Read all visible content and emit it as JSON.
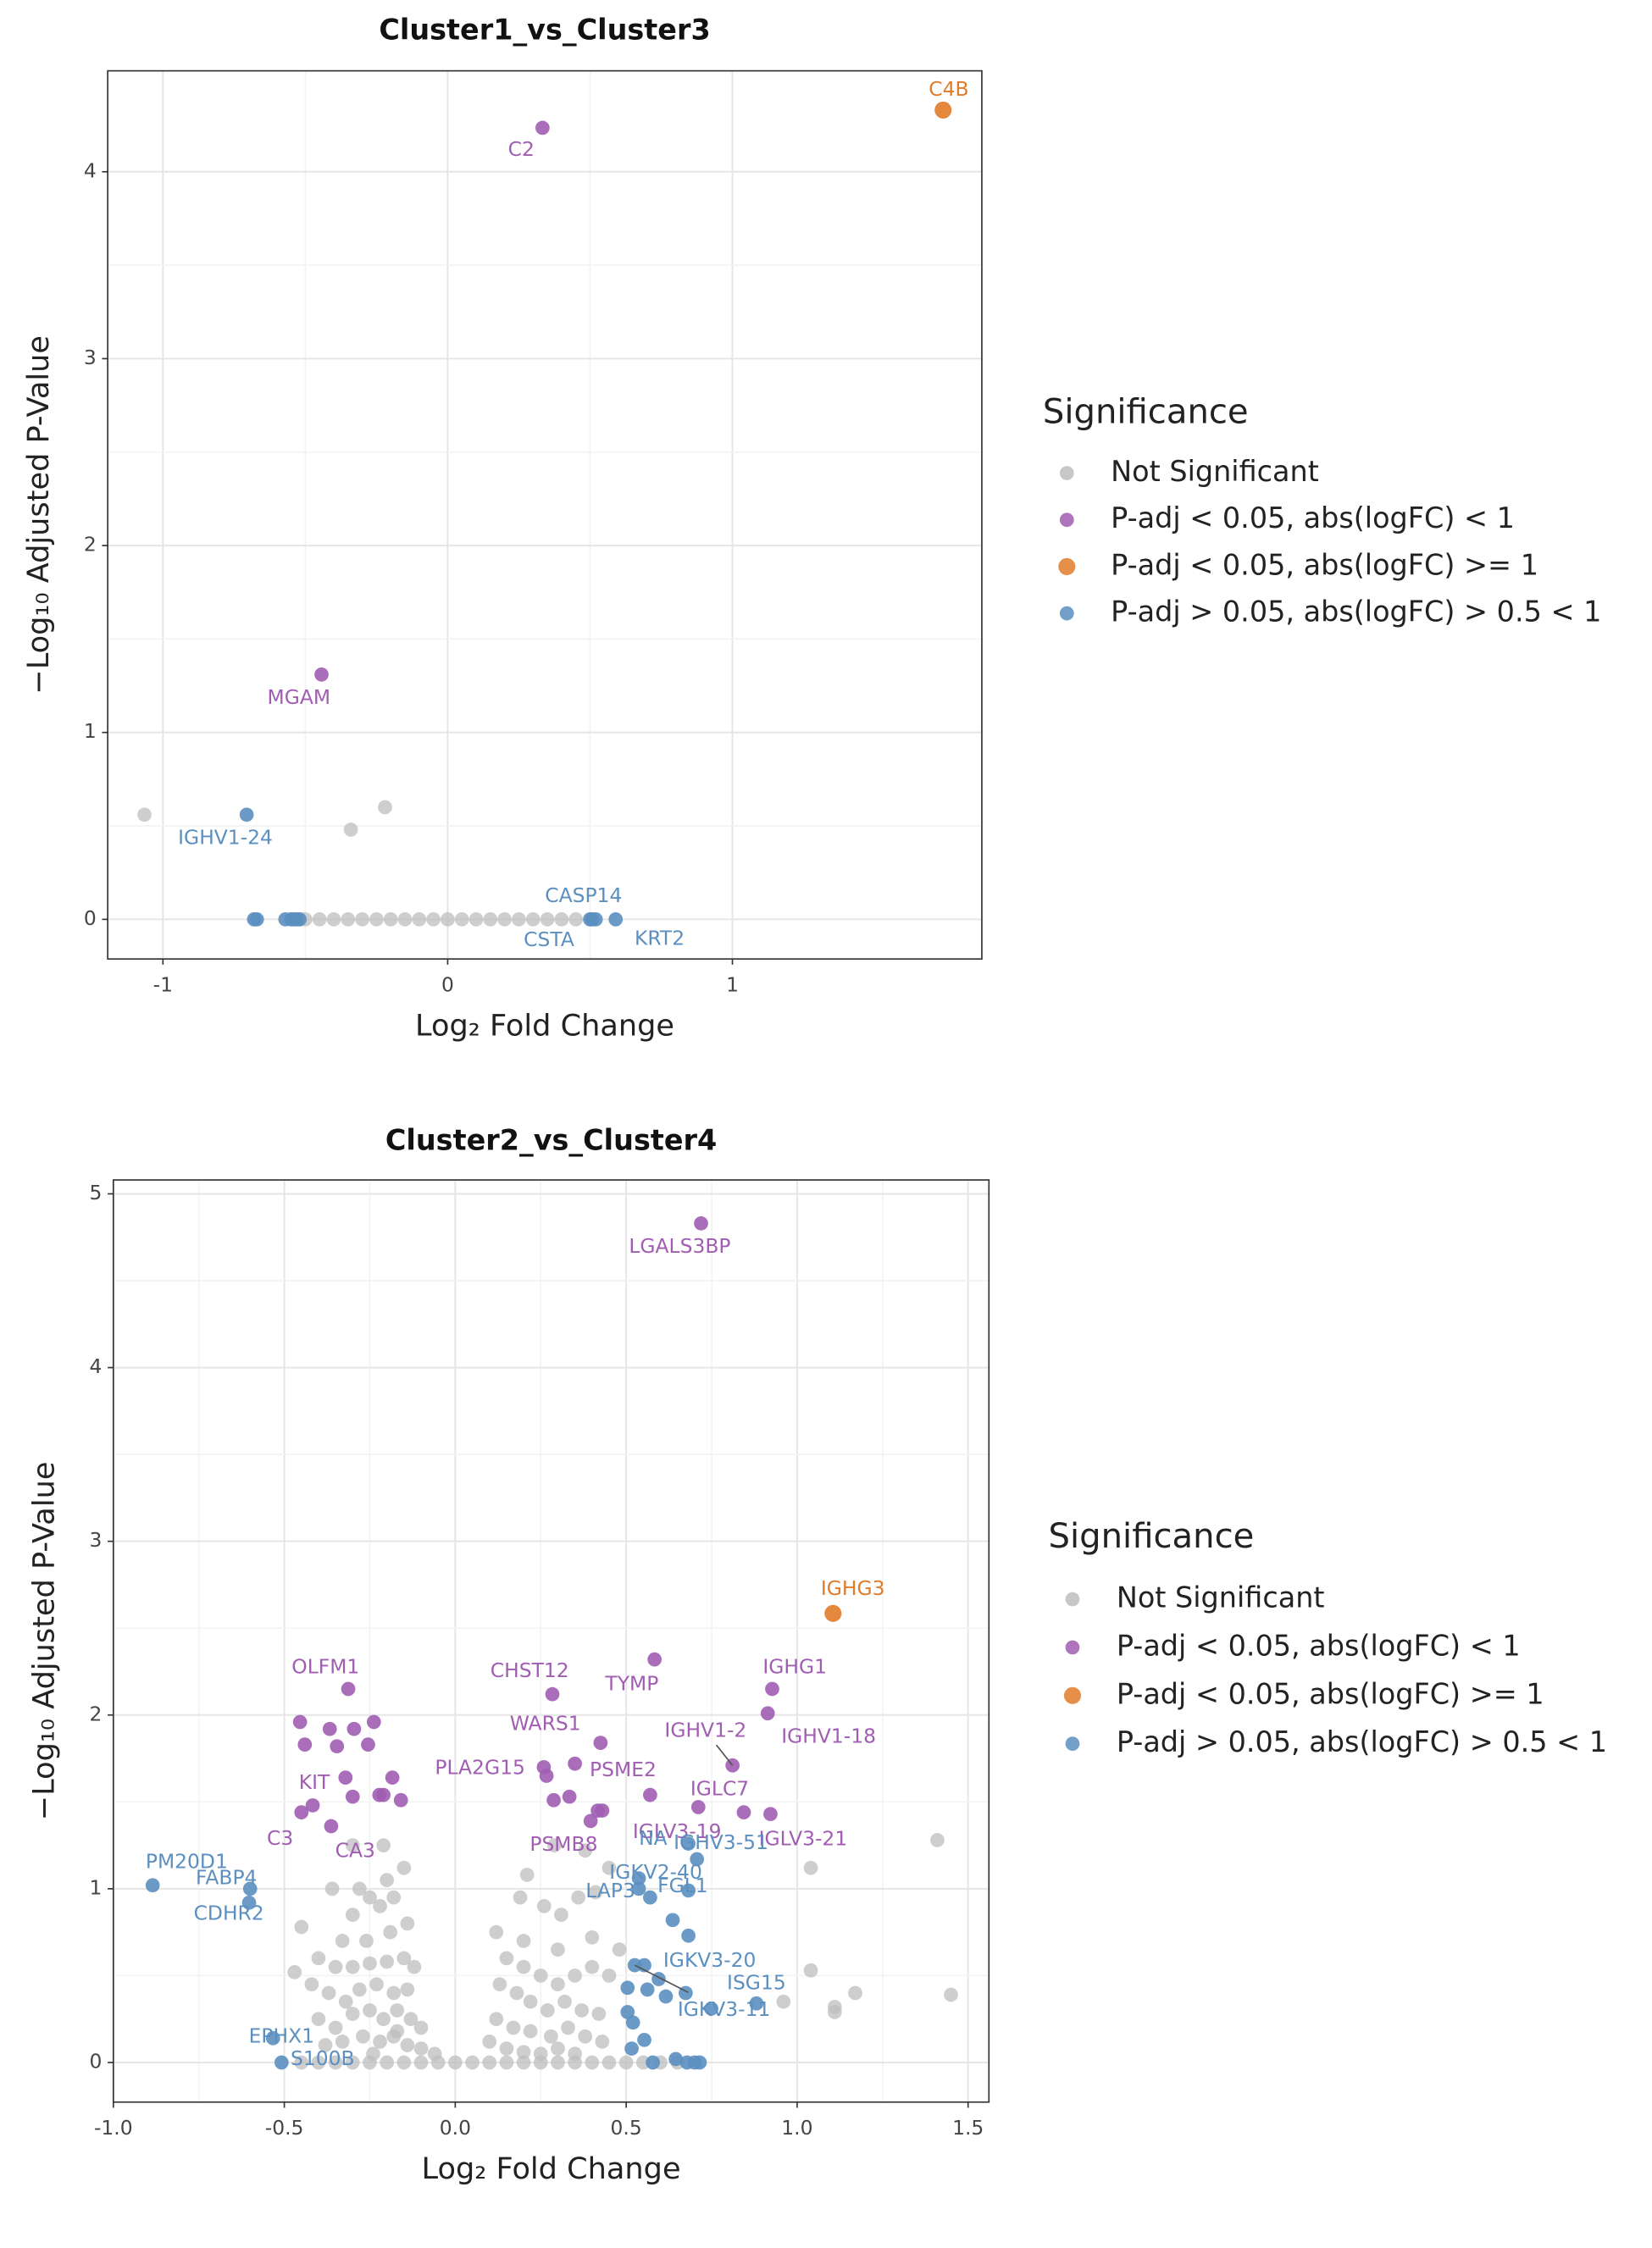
{
  "chart_data": [
    {
      "type": "scatter",
      "title": "Cluster1_vs_Cluster3",
      "x_label": "Log₂ Fold Change",
      "y_label": "−Log₁₀ Adjusted P-Value",
      "legend_title": "Significance",
      "legend": "right",
      "grid": true,
      "xlim": [
        -1.194,
        1.876
      ],
      "xticks": [
        -1,
        0,
        1
      ],
      "ylim": [
        -0.212,
        4.54
      ],
      "yticks": [
        0,
        1,
        2,
        3,
        4
      ],
      "series": [
        {
          "name": "Not Significant",
          "color": "#bdbdbd",
          "x": [
            -1.065,
            -0.22,
            -0.34,
            -0.5,
            -0.45,
            -0.4,
            -0.35,
            -0.3,
            -0.25,
            -0.2,
            -0.15,
            -0.1,
            -0.05,
            0,
            0.05,
            0.1,
            0.15,
            0.2,
            0.25,
            0.3,
            0.35,
            0.4,
            0.45
          ],
          "values": [
            0.56,
            0.6,
            0.48,
            0,
            0,
            0,
            0,
            0,
            0,
            0,
            0,
            0,
            0,
            0,
            0,
            0,
            0,
            0,
            0,
            0,
            0,
            0,
            0
          ]
        },
        {
          "name": "P-adj < 0.05, abs(logFC) < 1",
          "color": "#a05db2",
          "x": [
            0.333,
            -0.443
          ],
          "values": [
            4.235,
            1.31
          ],
          "point_labels": [
            "C2",
            "MGAM"
          ]
        },
        {
          "name": "P-adj < 0.05, abs(logFC) >= 1",
          "color": "#e07b28",
          "x": [
            1.74
          ],
          "values": [
            4.33
          ],
          "point_labels": [
            "C4B"
          ]
        },
        {
          "name": "P-adj > 0.05, abs(logFC) > 0.5 < 1",
          "color": "#5b8fc0",
          "x": [
            -0.706,
            0.507,
            0.52,
            0.59,
            -0.68,
            -0.67,
            -0.57,
            -0.55,
            -0.54,
            -0.53,
            -0.52,
            0.5
          ],
          "values": [
            0.56,
            0,
            0,
            0,
            0,
            0,
            0,
            0,
            0,
            0,
            0,
            0
          ],
          "point_labels": [
            "IGHV1-24",
            "CASP14",
            "CSTA",
            "KRT2",
            null,
            null,
            null,
            null,
            null,
            null,
            null,
            null
          ]
        }
      ]
    },
    {
      "type": "scatter",
      "title": "Cluster2_vs_Cluster4",
      "x_label": "Log₂ Fold Change",
      "y_label": "−Log₁₀ Adjusted P-Value",
      "legend_title": "Significance",
      "legend": "right",
      "grid": true,
      "xlim": [
        -1.0,
        1.561
      ],
      "xticks": [
        {
          "value": -1,
          "label": "-1.0"
        },
        -0.5,
        {
          "value": 0,
          "label": "0.0"
        },
        0.5,
        {
          "value": 1,
          "label": "1.0"
        },
        1.5
      ],
      "ylim": [
        -0.228,
        5.08
      ],
      "yticks": [
        0,
        1,
        2,
        3,
        4,
        5
      ],
      "series": [
        {
          "name": "Not Significant",
          "color": "#bdbdbd",
          "x": [
            1.41,
            1.04,
            1.45,
            1.04,
            1.17,
            1.11,
            1.11,
            0.96,
            -0.36,
            -0.28,
            -0.25,
            -0.22,
            -0.18,
            -0.15,
            -0.2,
            -0.3,
            -0.33,
            -0.26,
            -0.19,
            -0.14,
            -0.45,
            -0.47,
            -0.4,
            -0.35,
            -0.3,
            -0.25,
            -0.2,
            -0.15,
            -0.12,
            -0.42,
            -0.37,
            -0.32,
            -0.28,
            -0.23,
            -0.18,
            -0.14,
            -0.4,
            -0.35,
            -0.3,
            -0.25,
            -0.21,
            -0.17,
            -0.13,
            -0.1,
            -0.38,
            -0.33,
            -0.27,
            -0.22,
            -0.18,
            -0.14,
            -0.1,
            -0.06,
            -0.3,
            -0.21,
            -0.17,
            -0.24,
            0.12,
            0.15,
            0.2,
            0.25,
            0.3,
            0.35,
            0.4,
            0.45,
            0.13,
            0.18,
            0.22,
            0.27,
            0.32,
            0.37,
            0.42,
            0.12,
            0.17,
            0.22,
            0.28,
            0.33,
            0.38,
            0.43,
            0.1,
            0.15,
            0.2,
            0.25,
            0.3,
            0.35,
            0.21,
            0.26,
            0.31,
            0.36,
            0.41,
            0.29,
            0.38,
            0.45,
            0.2,
            0.3,
            0.4,
            0.48,
            0.19,
            -0.45,
            -0.4,
            -0.35,
            -0.3,
            -0.25,
            -0.2,
            -0.15,
            -0.1,
            -0.05,
            0,
            0.05,
            0.1,
            0.15,
            0.2,
            0.25,
            0.3,
            0.35,
            0.4,
            0.45,
            0.5,
            0.55,
            0.6,
            0.65
          ],
          "values": [
            1.28,
            1.12,
            0.39,
            0.53,
            0.4,
            0.32,
            0.29,
            0.35,
            1.0,
            1.0,
            0.95,
            0.9,
            0.95,
            1.12,
            1.05,
            0.85,
            0.7,
            0.7,
            0.75,
            0.8,
            0.78,
            0.52,
            0.6,
            0.55,
            0.55,
            0.57,
            0.58,
            0.6,
            0.55,
            0.45,
            0.4,
            0.35,
            0.42,
            0.45,
            0.4,
            0.42,
            0.25,
            0.2,
            0.28,
            0.3,
            0.25,
            0.3,
            0.25,
            0.2,
            0.1,
            0.12,
            0.15,
            0.12,
            0.15,
            0.1,
            0.08,
            0.05,
            1.25,
            1.25,
            0.18,
            0.05,
            0.75,
            0.6,
            0.55,
            0.5,
            0.45,
            0.5,
            0.55,
            0.5,
            0.45,
            0.4,
            0.35,
            0.3,
            0.35,
            0.3,
            0.28,
            0.25,
            0.2,
            0.18,
            0.15,
            0.2,
            0.15,
            0.12,
            0.12,
            0.08,
            0.06,
            0.05,
            0.08,
            0.05,
            1.08,
            0.9,
            0.85,
            0.95,
            0.98,
            1.25,
            1.22,
            1.12,
            0.7,
            0.65,
            0.72,
            0.65,
            0.95,
            0,
            0,
            0,
            0,
            0,
            0,
            0,
            0,
            0,
            0,
            0,
            0,
            0,
            0,
            0,
            0,
            0,
            0,
            0,
            0,
            0,
            0,
            0
          ]
        },
        {
          "name": "P-adj < 0.05, abs(logFC) < 1",
          "color": "#a05db2",
          "x": [
            0.719,
            -0.313,
            0.284,
            0.583,
            0.927,
            0.914,
            0.425,
            0.811,
            0.259,
            0.35,
            0.844,
            -0.321,
            0.922,
            0.711,
            -0.45,
            -0.363,
            0.396,
            -0.454,
            -0.44,
            -0.367,
            -0.296,
            -0.238,
            -0.346,
            -0.255,
            -0.417,
            -0.3,
            -0.222,
            -0.21,
            -0.184,
            -0.159,
            0.267,
            0.288,
            0.334,
            0.417,
            0.43,
            0.57
          ],
          "values": [
            4.83,
            2.15,
            2.12,
            2.32,
            2.15,
            2.01,
            1.84,
            1.71,
            1.7,
            1.72,
            1.44,
            1.64,
            1.43,
            1.47,
            1.44,
            1.36,
            1.39,
            1.96,
            1.83,
            1.92,
            1.92,
            1.96,
            1.82,
            1.83,
            1.48,
            1.53,
            1.54,
            1.54,
            1.64,
            1.51,
            1.65,
            1.51,
            1.53,
            1.45,
            1.45,
            1.54
          ],
          "point_labels": [
            "LGALS3BP",
            "OLFM1",
            "CHST12",
            "TYMP",
            "IGHG1",
            "IGHV1-18",
            "WARS1",
            "IGHV1-2",
            "PLA2G15",
            "PSME2",
            "IGLC7",
            "KIT",
            "IGLV3-21",
            "IGLV3-19",
            "C3",
            "CA3",
            "PSMB8",
            null,
            null,
            null,
            null,
            null,
            null,
            null,
            null,
            null,
            null,
            null,
            null,
            null,
            null,
            null,
            null,
            null,
            null,
            null
          ]
        },
        {
          "name": "P-adj < 0.05, abs(logFC) >= 1",
          "color": "#e07b28",
          "x": [
            1.105
          ],
          "values": [
            2.585
          ],
          "point_labels": [
            "IGHG3"
          ]
        },
        {
          "name": "P-adj > 0.05, abs(logFC) > 0.5 < 1",
          "color": "#5b8fc0",
          "x": [
            -0.885,
            -0.6,
            -0.603,
            -0.533,
            -0.508,
            0.682,
            0.707,
            0.537,
            0.682,
            0.57,
            0.525,
            0.682,
            0.881,
            0.537,
            0.636,
            0.504,
            0.562,
            0.595,
            0.616,
            0.674,
            0.749,
            0.504,
            0.52,
            0.553,
            0.516,
            0.578,
            0.645,
            0.678,
            0.7,
            0.715,
            0.553
          ],
          "values": [
            1.02,
            1.0,
            0.92,
            0.14,
            0,
            1.26,
            1.17,
            1.06,
            0.99,
            0.95,
            0.56,
            0.73,
            0.34,
            1.0,
            0.82,
            0.43,
            0.42,
            0.48,
            0.38,
            0.4,
            0.31,
            0.29,
            0.23,
            0.13,
            0.08,
            0,
            0.02,
            0,
            0,
            0,
            0.56
          ],
          "point_labels": [
            "PM20D1",
            "CDHR2",
            "FABP4",
            "S100B",
            "EPHX1",
            "IGHV3-51",
            "NA",
            "FGL1",
            "LAP3",
            "IGKV2-40",
            "IGKV3-11",
            "IGKV3-20",
            "ISG15",
            null,
            null,
            null,
            null,
            null,
            null,
            null,
            null,
            null,
            null,
            null,
            null,
            null,
            null,
            null,
            null,
            null,
            null
          ]
        }
      ]
    }
  ]
}
